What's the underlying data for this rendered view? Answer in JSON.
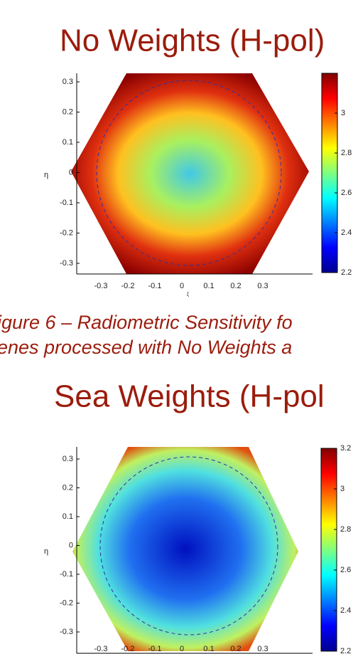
{
  "slides": [
    {
      "title": "No Weights (H-pol)",
      "plot": {
        "ylabel": "η",
        "xlabel": "ξ",
        "yticks": [
          "0.3",
          "0.2",
          "0.1",
          "0",
          "-0.1",
          "-0.2",
          "-0.3"
        ],
        "xticks": [
          "-0.3",
          "-0.2",
          "-0.1",
          "0",
          "0.1",
          "0.2",
          "0.3"
        ],
        "colorbar_ticks": [
          "3",
          "2.8",
          "2.6",
          "2.4",
          "2.2"
        ]
      }
    },
    {
      "title": "Sea Weights (H-pol",
      "plot": {
        "ylabel": "η",
        "yticks": [
          "0.3",
          "0.2",
          "0.1",
          "0",
          "-0.1",
          "-0.2",
          "-0.3"
        ],
        "xticks": [
          "-0.3",
          "-0.2",
          "-0.1",
          "0",
          "0.1",
          "0.2",
          "0.3"
        ],
        "colorbar_ticks": [
          "3.2",
          "3",
          "2.8",
          "2.6",
          "2.4",
          "2.2"
        ]
      }
    }
  ],
  "caption": [
    "igure 6 – Radiometric Sensitivity fo",
    "enes processed with No Weights a"
  ]
}
